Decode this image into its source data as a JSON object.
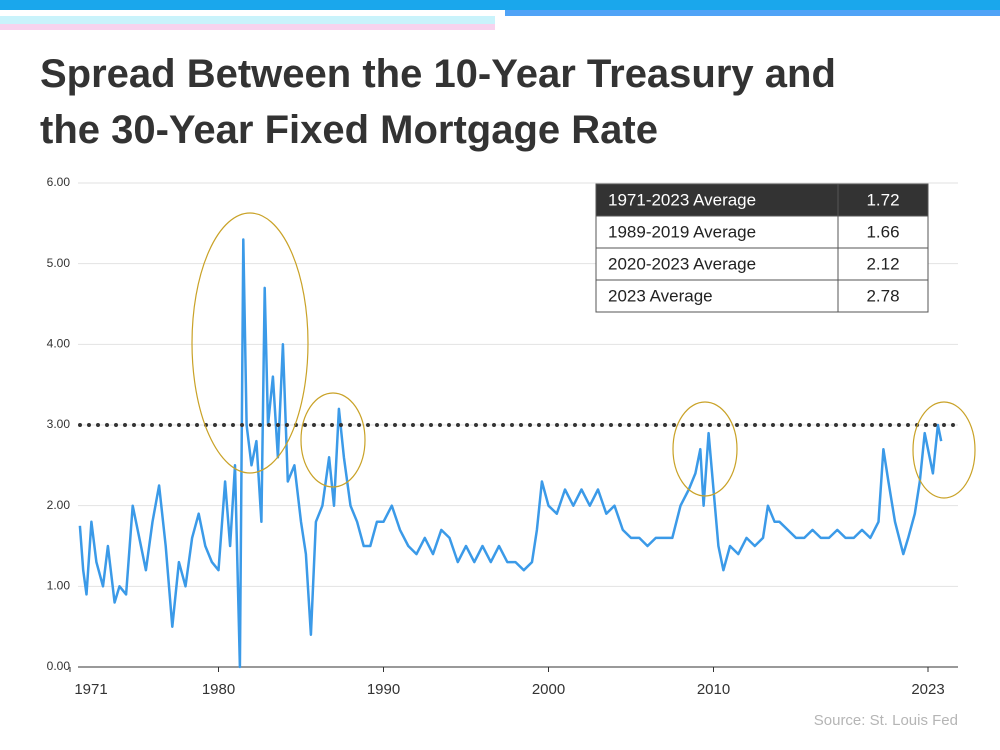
{
  "chart_data": {
    "type": "line",
    "title": "Spread Between the 10-Year Treasury and the 30-Year Fixed Mortgage Rate",
    "source": "Source: St. Louis Fed",
    "color": "#3b9ae8",
    "xlim": [
      1971,
      2024.5
    ],
    "xticks": [
      1971,
      1980,
      1990,
      2000,
      2010,
      2023
    ],
    "ylim": [
      0,
      6
    ],
    "yticks": [
      {
        "value": 0,
        "label": "0.00"
      },
      {
        "value": 1,
        "label": "1.00"
      },
      {
        "value": 2,
        "label": "2.00"
      },
      {
        "value": 3,
        "label": "3.00"
      },
      {
        "value": 4,
        "label": "4.00"
      },
      {
        "value": 5,
        "label": "5.00"
      },
      {
        "value": 6,
        "label": "6.00"
      }
    ],
    "grid": true,
    "reference_line": 3,
    "x": [
      1971.6,
      1971.8,
      1972.0,
      1972.3,
      1972.6,
      1973.0,
      1973.3,
      1973.7,
      1974.0,
      1974.4,
      1974.8,
      1975.2,
      1975.6,
      1976.0,
      1976.4,
      1976.8,
      1977.2,
      1977.6,
      1978.0,
      1978.4,
      1978.8,
      1979.2,
      1979.6,
      1980.0,
      1980.4,
      1980.7,
      1981.0,
      1981.3,
      1981.5,
      1981.7,
      1982.0,
      1982.3,
      1982.6,
      1982.8,
      1983.0,
      1983.3,
      1983.6,
      1983.9,
      1984.2,
      1984.6,
      1985.0,
      1985.3,
      1985.6,
      1985.9,
      1986.3,
      1986.7,
      1987.0,
      1987.3,
      1987.6,
      1988.0,
      1988.4,
      1988.8,
      1989.2,
      1989.6,
      1990.0,
      1990.5,
      1991.0,
      1991.5,
      1992.0,
      1992.5,
      1993.0,
      1993.5,
      1994.0,
      1994.5,
      1995.0,
      1995.5,
      1996.0,
      1996.5,
      1997.0,
      1997.5,
      1998.0,
      1998.5,
      1999.0,
      1999.3,
      1999.6,
      2000.0,
      2000.5,
      2001.0,
      2001.5,
      2002.0,
      2002.5,
      2003.0,
      2003.5,
      2004.0,
      2004.5,
      2005.0,
      2005.5,
      2006.0,
      2006.5,
      2007.0,
      2007.5,
      2008.0,
      2008.5,
      2008.9,
      2009.2,
      2009.4,
      2009.7,
      2010.0,
      2010.3,
      2010.6,
      2011.0,
      2011.5,
      2012.0,
      2012.5,
      2013.0,
      2013.3,
      2013.7,
      2014.0,
      2014.5,
      2015.0,
      2015.5,
      2016.0,
      2016.5,
      2017.0,
      2017.5,
      2018.0,
      2018.5,
      2019.0,
      2019.5,
      2020.0,
      2020.3,
      2020.6,
      2021.0,
      2021.5,
      2021.8,
      2022.2,
      2022.5,
      2022.8,
      2023.0,
      2023.3,
      2023.6,
      2023.8
    ],
    "values": [
      1.75,
      1.2,
      0.9,
      1.8,
      1.3,
      1.0,
      1.5,
      0.8,
      1.0,
      0.9,
      2.0,
      1.6,
      1.2,
      1.8,
      2.25,
      1.5,
      0.5,
      1.3,
      1.0,
      1.6,
      1.9,
      1.5,
      1.3,
      1.2,
      2.3,
      1.5,
      2.5,
      0.0,
      5.3,
      3.0,
      2.5,
      2.8,
      1.8,
      4.7,
      3.0,
      3.6,
      2.6,
      4.0,
      2.3,
      2.5,
      1.8,
      1.4,
      0.4,
      1.8,
      2.0,
      2.6,
      2.0,
      3.2,
      2.6,
      2.0,
      1.8,
      1.5,
      1.5,
      1.8,
      1.8,
      2.0,
      1.7,
      1.5,
      1.4,
      1.6,
      1.4,
      1.7,
      1.6,
      1.3,
      1.5,
      1.3,
      1.5,
      1.3,
      1.5,
      1.3,
      1.3,
      1.2,
      1.3,
      1.7,
      2.3,
      2.0,
      1.9,
      2.2,
      2.0,
      2.2,
      2.0,
      2.2,
      1.9,
      2.0,
      1.7,
      1.6,
      1.6,
      1.5,
      1.6,
      1.6,
      1.6,
      2.0,
      2.2,
      2.4,
      2.7,
      2.0,
      2.9,
      2.2,
      1.5,
      1.2,
      1.5,
      1.4,
      1.6,
      1.5,
      1.6,
      2.0,
      1.8,
      1.8,
      1.7,
      1.6,
      1.6,
      1.7,
      1.6,
      1.6,
      1.7,
      1.6,
      1.6,
      1.7,
      1.6,
      1.8,
      2.7,
      2.3,
      1.8,
      1.4,
      1.6,
      1.9,
      2.3,
      2.9,
      2.7,
      2.4,
      3.0,
      2.8
    ],
    "table": {
      "rows": [
        [
          "1971-2023 Average",
          1.72
        ],
        [
          "1989-2019 Average",
          1.66
        ],
        [
          "2020-2023 Average",
          2.12
        ],
        [
          "2023 Average",
          2.78
        ]
      ]
    }
  }
}
